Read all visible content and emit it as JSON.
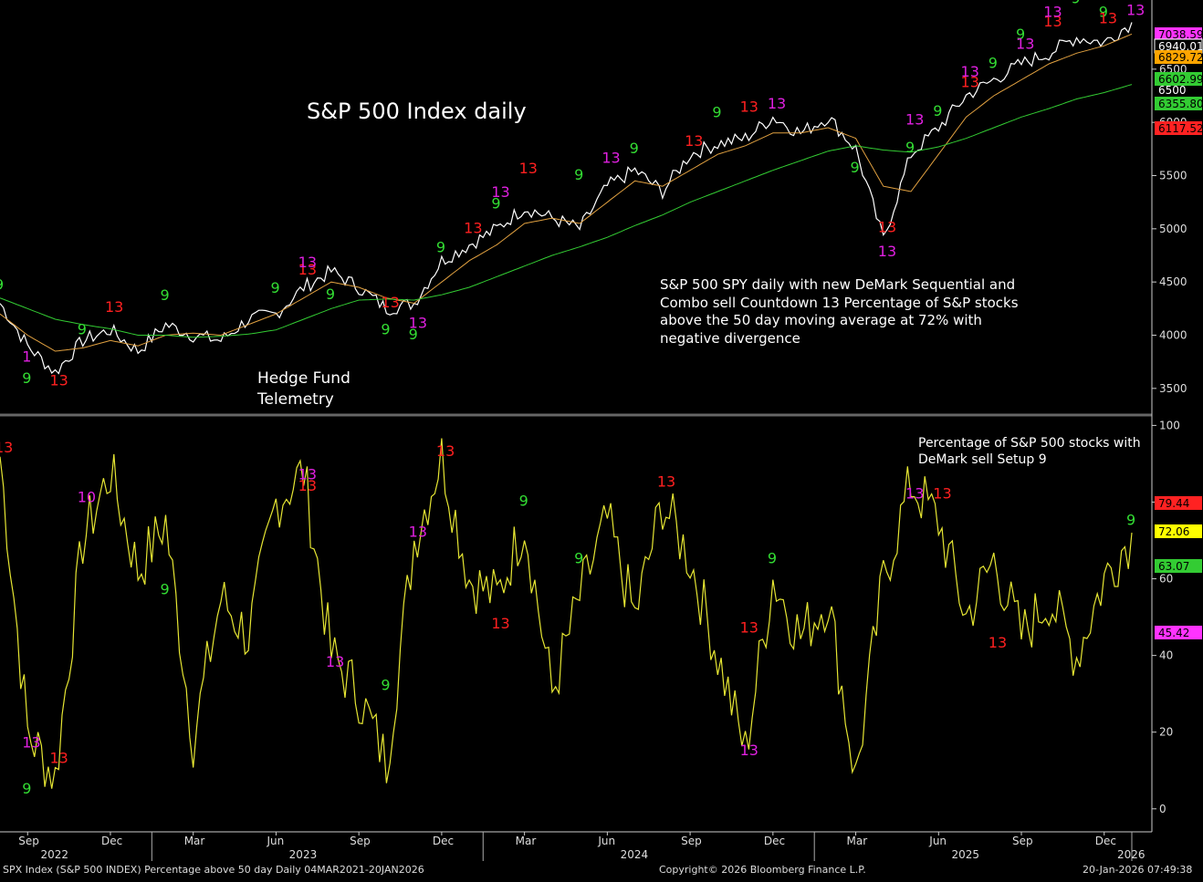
{
  "chart_data": [
    {
      "type": "line",
      "title": "S&P 500 Index daily",
      "annotation": "S&P 500 SPY daily with new DeMark Sequential and\nCombo sell Countdown 13 Percentage of S&P stocks\nabove the 50 day moving average at 72% with\nnegative divergence",
      "watermark": "Hedge Fund\nTelemetry",
      "y_ticks": [
        "3500",
        "4000",
        "4500",
        "5000",
        "5500",
        "6000",
        "6500"
      ],
      "ylim": [
        3250,
        7150
      ],
      "x": [
        "2022-08",
        "2022-09",
        "2022-10",
        "2022-11",
        "2022-12",
        "2023-01",
        "2023-02",
        "2023-03",
        "2023-04",
        "2023-05",
        "2023-06",
        "2023-07",
        "2023-08",
        "2023-09",
        "2023-10",
        "2023-11",
        "2023-12",
        "2024-01",
        "2024-02",
        "2024-03",
        "2024-04",
        "2024-05",
        "2024-06",
        "2024-07",
        "2024-08",
        "2024-09",
        "2024-10",
        "2024-11",
        "2024-12",
        "2025-01",
        "2025-02",
        "2025-03",
        "2025-04",
        "2025-05",
        "2025-06",
        "2025-07",
        "2025-08",
        "2025-09",
        "2025-10",
        "2025-11",
        "2025-12",
        "2026-01"
      ],
      "series": [
        {
          "values": [
            4300,
            3900,
            3650,
            3950,
            4050,
            3850,
            4100,
            4000,
            3950,
            4150,
            4200,
            4450,
            4600,
            4450,
            4250,
            4300,
            4700,
            4850,
            5000,
            5200,
            5100,
            5000,
            5400,
            5550,
            5350,
            5700,
            5800,
            5850,
            6050,
            5900,
            6050,
            5750,
            4900,
            5700,
            5950,
            6250,
            6400,
            6550,
            6650,
            6800,
            6750,
            6940
          ],
          "color": "#ffffff"
        },
        {
          "values": [
            4200,
            4000,
            3850,
            3880,
            3950,
            3900,
            4000,
            4020,
            4000,
            4100,
            4200,
            4350,
            4500,
            4450,
            4350,
            4300,
            4500,
            4700,
            4850,
            5050,
            5100,
            5050,
            5250,
            5450,
            5400,
            5550,
            5700,
            5780,
            5900,
            5900,
            5950,
            5850,
            5400,
            5350,
            5700,
            6050,
            6250,
            6400,
            6550,
            6650,
            6720,
            6830
          ],
          "color": "#e0a040"
        },
        {
          "values": [
            4350,
            4250,
            4150,
            4100,
            4060,
            4000,
            4000,
            3980,
            3990,
            4010,
            4050,
            4150,
            4250,
            4330,
            4340,
            4330,
            4380,
            4450,
            4550,
            4650,
            4750,
            4830,
            4920,
            5030,
            5130,
            5250,
            5350,
            5450,
            5550,
            5640,
            5730,
            5780,
            5740,
            5720,
            5770,
            5850,
            5950,
            6050,
            6130,
            6220,
            6280,
            6356
          ],
          "color": "#33cc33"
        }
      ],
      "price_labels": [
        {
          "text": "7038.59",
          "color": "#ff33ff"
        },
        {
          "text": "6940.01",
          "color": "#ffffff"
        },
        {
          "text": "6829.72",
          "color": "#ffa500"
        },
        {
          "text": "6602.99",
          "color": "#33cc33"
        },
        {
          "text": "6500",
          "color": "#000000"
        },
        {
          "text": "6355.80",
          "color": "#33cc33"
        },
        {
          "text": "6117.52",
          "color": "#ff2222"
        }
      ],
      "demark_labels": [
        {
          "x": "2022-08",
          "y": 4430,
          "text": "9",
          "color": "#33dd33"
        },
        {
          "x": "2022-09",
          "y": 3750,
          "text": "1",
          "color": "#e020e0"
        },
        {
          "x": "2022-09",
          "y": 3550,
          "text": "9",
          "color": "#33dd33"
        },
        {
          "x": "2022-10",
          "y": 3530,
          "text": "13",
          "color": "#ff2020"
        },
        {
          "x": "2022-11",
          "y": 4010,
          "text": "9",
          "color": "#33dd33"
        },
        {
          "x": "2022-12",
          "y": 4220,
          "text": "13",
          "color": "#ff2020"
        },
        {
          "x": "2023-02",
          "y": 4330,
          "text": "9",
          "color": "#33dd33"
        },
        {
          "x": "2023-06",
          "y": 4400,
          "text": "9",
          "color": "#33dd33"
        },
        {
          "x": "2023-07",
          "y": 4570,
          "text": "13",
          "color": "#ff2020"
        },
        {
          "x": "2023-07",
          "y": 4640,
          "text": "13",
          "color": "#e020e0"
        },
        {
          "x": "2023-08",
          "y": 4340,
          "text": "9",
          "color": "#33dd33"
        },
        {
          "x": "2023-10",
          "y": 4010,
          "text": "9",
          "color": "#33dd33"
        },
        {
          "x": "2023-10",
          "y": 4260,
          "text": "13",
          "color": "#ff2020"
        },
        {
          "x": "2023-11",
          "y": 4070,
          "text": "13",
          "color": "#e020e0"
        },
        {
          "x": "2023-11",
          "y": 3960,
          "text": "9",
          "color": "#33dd33"
        },
        {
          "x": "2023-12",
          "y": 4780,
          "text": "9",
          "color": "#33dd33"
        },
        {
          "x": "2024-01",
          "y": 4960,
          "text": "13",
          "color": "#ff2020"
        },
        {
          "x": "2024-02",
          "y": 5190,
          "text": "9",
          "color": "#33dd33"
        },
        {
          "x": "2024-02",
          "y": 5300,
          "text": "13",
          "color": "#e020e0"
        },
        {
          "x": "2024-03",
          "y": 5520,
          "text": "13",
          "color": "#ff2020"
        },
        {
          "x": "2024-05",
          "y": 5460,
          "text": "9",
          "color": "#33dd33"
        },
        {
          "x": "2024-06",
          "y": 5620,
          "text": "13",
          "color": "#e020e0"
        },
        {
          "x": "2024-07",
          "y": 5710,
          "text": "9",
          "color": "#33dd33"
        },
        {
          "x": "2024-09",
          "y": 5780,
          "text": "13",
          "color": "#ff2020"
        },
        {
          "x": "2024-10",
          "y": 6050,
          "text": "9",
          "color": "#33dd33"
        },
        {
          "x": "2024-11",
          "y": 6100,
          "text": "13",
          "color": "#ff2020"
        },
        {
          "x": "2024-12",
          "y": 6130,
          "text": "13",
          "color": "#e020e0"
        },
        {
          "x": "2025-03",
          "y": 5530,
          "text": "9",
          "color": "#33dd33"
        },
        {
          "x": "2025-04",
          "y": 4970,
          "text": "13",
          "color": "#ff2020"
        },
        {
          "x": "2025-04",
          "y": 4740,
          "text": "13",
          "color": "#e020e0"
        },
        {
          "x": "2025-05",
          "y": 5720,
          "text": "9",
          "color": "#33dd33"
        },
        {
          "x": "2025-05",
          "y": 5980,
          "text": "13",
          "color": "#e020e0"
        },
        {
          "x": "2025-06",
          "y": 6060,
          "text": "9",
          "color": "#33dd33"
        },
        {
          "x": "2025-07",
          "y": 6330,
          "text": "13",
          "color": "#ff2020"
        },
        {
          "x": "2025-07",
          "y": 6430,
          "text": "13",
          "color": "#e020e0"
        },
        {
          "x": "2025-08",
          "y": 6510,
          "text": "9",
          "color": "#33dd33"
        },
        {
          "x": "2025-09",
          "y": 6780,
          "text": "9",
          "color": "#33dd33"
        },
        {
          "x": "2025-09",
          "y": 6690,
          "text": "13",
          "color": "#e020e0"
        },
        {
          "x": "2025-10",
          "y": 6900,
          "text": "13",
          "color": "#ff2020"
        },
        {
          "x": "2025-10",
          "y": 6990,
          "text": "13",
          "color": "#e020e0"
        },
        {
          "x": "2025-11",
          "y": 7120,
          "text": "9",
          "color": "#33dd33"
        },
        {
          "x": "2025-12",
          "y": 6990,
          "text": "9",
          "color": "#33dd33"
        },
        {
          "x": "2025-12",
          "y": 6930,
          "text": "13",
          "color": "#ff2020"
        },
        {
          "x": "2026-01",
          "y": 7170,
          "text": "13",
          "color": "#ff2020"
        },
        {
          "x": "2026-01",
          "y": 7010,
          "text": "13",
          "color": "#e020e0"
        }
      ]
    },
    {
      "type": "line",
      "title": "Percentage of S&P 500 stocks with\nDeMark sell Setup 9",
      "y_ticks": [
        "0",
        "20",
        "40",
        "60",
        "80",
        "100"
      ],
      "ylim": [
        -6,
        102
      ],
      "x": [
        "2022-08",
        "2022-09",
        "2022-10",
        "2022-11",
        "2022-12",
        "2023-01",
        "2023-02",
        "2023-03",
        "2023-04",
        "2023-05",
        "2023-06",
        "2023-07",
        "2023-08",
        "2023-09",
        "2023-10",
        "2023-11",
        "2023-12",
        "2024-01",
        "2024-02",
        "2024-03",
        "2024-04",
        "2024-05",
        "2024-06",
        "2024-07",
        "2024-08",
        "2024-09",
        "2024-10",
        "2024-11",
        "2024-12",
        "2025-01",
        "2025-02",
        "2025-03",
        "2025-04",
        "2025-05",
        "2025-06",
        "2025-07",
        "2025-08",
        "2025-09",
        "2025-10",
        "2025-11",
        "2025-12",
        "2026-01"
      ],
      "series": [
        {
          "values": [
            92,
            20,
            8,
            70,
            88,
            62,
            75,
            18,
            55,
            45,
            80,
            88,
            40,
            30,
            12,
            70,
            92,
            60,
            55,
            75,
            30,
            55,
            75,
            50,
            80,
            65,
            40,
            15,
            60,
            45,
            55,
            8,
            60,
            85,
            75,
            50,
            65,
            45,
            55,
            40,
            60,
            72
          ],
          "color": "#e6e633"
        }
      ],
      "price_labels": [
        {
          "text": "79.44",
          "color": "#ff2222"
        },
        {
          "text": "72.06",
          "color": "#ffff00"
        },
        {
          "text": "63.07",
          "color": "#33cc33"
        },
        {
          "text": "45.42",
          "color": "#ff33ff"
        }
      ],
      "demark_labels": [
        {
          "x": "2022-08",
          "y": 93,
          "text": "13",
          "color": "#ff2020"
        },
        {
          "x": "2022-09",
          "y": 16,
          "text": "13",
          "color": "#e020e0"
        },
        {
          "x": "2022-09",
          "y": 4,
          "text": "9",
          "color": "#33dd33"
        },
        {
          "x": "2022-10",
          "y": 12,
          "text": "13",
          "color": "#ff2020"
        },
        {
          "x": "2022-11",
          "y": 80,
          "text": "10",
          "color": "#e020e0"
        },
        {
          "x": "2023-02",
          "y": 56,
          "text": "9",
          "color": "#33dd33"
        },
        {
          "x": "2023-07",
          "y": 83,
          "text": "13",
          "color": "#ff2020"
        },
        {
          "x": "2023-07",
          "y": 86,
          "text": "13",
          "color": "#e020e0"
        },
        {
          "x": "2023-08",
          "y": 37,
          "text": "13",
          "color": "#e020e0"
        },
        {
          "x": "2023-10",
          "y": 31,
          "text": "9",
          "color": "#33dd33"
        },
        {
          "x": "2023-11",
          "y": 71,
          "text": "13",
          "color": "#e020e0"
        },
        {
          "x": "2023-12",
          "y": 92,
          "text": "13",
          "color": "#ff2020"
        },
        {
          "x": "2024-02",
          "y": 47,
          "text": "13",
          "color": "#ff2020"
        },
        {
          "x": "2024-03",
          "y": 79,
          "text": "9",
          "color": "#33dd33"
        },
        {
          "x": "2024-05",
          "y": 64,
          "text": "9",
          "color": "#33dd33"
        },
        {
          "x": "2024-08",
          "y": 84,
          "text": "13",
          "color": "#ff2020"
        },
        {
          "x": "2024-11",
          "y": 46,
          "text": "13",
          "color": "#ff2020"
        },
        {
          "x": "2024-11",
          "y": 14,
          "text": "13",
          "color": "#e020e0"
        },
        {
          "x": "2024-12",
          "y": 64,
          "text": "9",
          "color": "#33dd33"
        },
        {
          "x": "2025-05",
          "y": 81,
          "text": "13",
          "color": "#e020e0"
        },
        {
          "x": "2025-06",
          "y": 81,
          "text": "13",
          "color": "#ff2020"
        },
        {
          "x": "2025-08",
          "y": 42,
          "text": "13",
          "color": "#ff2020"
        },
        {
          "x": "2026-01",
          "y": 74,
          "text": "9",
          "color": "#33dd33"
        }
      ]
    }
  ],
  "x_axis": {
    "months": [
      "Sep",
      "Dec",
      "Mar",
      "Jun",
      "Sep",
      "Dec",
      "Mar",
      "Jun",
      "Sep",
      "Dec",
      "Mar",
      "Jun",
      "Sep",
      "Dec"
    ],
    "years": [
      "2022",
      "2023",
      "2024",
      "2025",
      "2026"
    ]
  },
  "footer": {
    "left": "SPX Index (S&P 500 INDEX) Percentage above 50 day Daily 04MAR2021-20JAN2026",
    "center": "Copyright© 2026 Bloomberg Finance L.P.",
    "right": "20-Jan-2026 07:49:38"
  }
}
